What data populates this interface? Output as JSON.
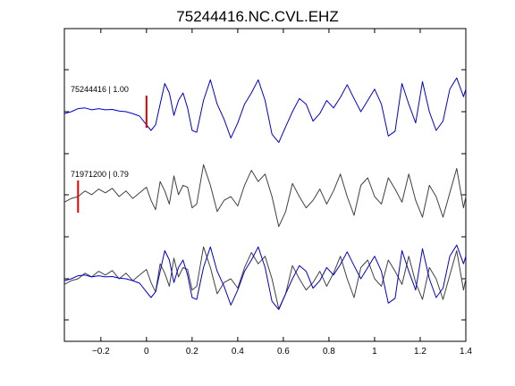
{
  "chart_data": {
    "type": "line",
    "title": "75244416.NC.CVL.EHZ",
    "xlabel": "",
    "ylabel": "",
    "xlim": [
      -0.36,
      1.4
    ],
    "grid": false,
    "x_ticks": [
      -0.2,
      0,
      0.2,
      0.4,
      0.6,
      0.8,
      1,
      1.2,
      1.4
    ],
    "x_tick_labels": [
      "−0.2",
      "0",
      "0.2",
      "0.4",
      "0.6",
      "0.8",
      "1",
      "1.2",
      "1.4"
    ],
    "traces": [
      {
        "label": "75244416 | 1.00",
        "color": "#0000cc",
        "pick_time": 0.0,
        "x": [
          -0.36,
          -0.33,
          -0.3,
          -0.27,
          -0.24,
          -0.21,
          -0.18,
          -0.15,
          -0.12,
          -0.09,
          -0.06,
          -0.03,
          0.0,
          0.02,
          0.04,
          0.06,
          0.08,
          0.1,
          0.12,
          0.14,
          0.16,
          0.18,
          0.2,
          0.22,
          0.25,
          0.28,
          0.31,
          0.34,
          0.37,
          0.4,
          0.43,
          0.46,
          0.49,
          0.52,
          0.55,
          0.58,
          0.61,
          0.64,
          0.67,
          0.7,
          0.73,
          0.76,
          0.79,
          0.82,
          0.85,
          0.88,
          0.91,
          0.94,
          0.97,
          1.0,
          1.03,
          1.06,
          1.09,
          1.12,
          1.15,
          1.18,
          1.21,
          1.24,
          1.27,
          1.3,
          1.33,
          1.36,
          1.39,
          1.4
        ],
        "y": [
          -0.05,
          0.0,
          0.08,
          0.1,
          0.05,
          0.08,
          0.05,
          0.06,
          0.02,
          0.0,
          -0.05,
          -0.12,
          -0.35,
          -0.5,
          -0.35,
          0.2,
          0.75,
          0.5,
          -0.1,
          0.3,
          0.5,
          0.1,
          -0.5,
          -0.55,
          0.3,
          0.85,
          0.2,
          -0.2,
          -0.7,
          -0.3,
          0.2,
          0.5,
          0.85,
          0.3,
          -0.6,
          -0.82,
          -0.4,
          0.0,
          0.35,
          0.2,
          -0.25,
          -0.05,
          0.3,
          0.1,
          0.38,
          0.72,
          0.35,
          0.0,
          0.3,
          0.6,
          0.2,
          -0.65,
          -0.52,
          0.75,
          0.2,
          -0.3,
          0.8,
          0.0,
          -0.5,
          -0.25,
          0.6,
          0.9,
          0.4,
          0.6
        ]
      },
      {
        "label": "71971200 | 0.79",
        "color": "#404040",
        "pick_time": -0.3,
        "x": [
          -0.36,
          -0.33,
          -0.3,
          -0.27,
          -0.24,
          -0.21,
          -0.18,
          -0.15,
          -0.12,
          -0.09,
          -0.06,
          -0.03,
          0.0,
          0.02,
          0.04,
          0.06,
          0.08,
          0.1,
          0.12,
          0.14,
          0.16,
          0.18,
          0.2,
          0.22,
          0.25,
          0.28,
          0.31,
          0.34,
          0.37,
          0.4,
          0.43,
          0.46,
          0.49,
          0.52,
          0.55,
          0.58,
          0.61,
          0.64,
          0.67,
          0.7,
          0.73,
          0.76,
          0.79,
          0.82,
          0.85,
          0.88,
          0.91,
          0.94,
          0.97,
          1.0,
          1.03,
          1.06,
          1.09,
          1.12,
          1.15,
          1.18,
          1.21,
          1.24,
          1.27,
          1.3,
          1.33,
          1.36,
          1.39,
          1.4
        ],
        "y": [
          -0.15,
          -0.05,
          0.0,
          0.15,
          0.05,
          0.2,
          0.1,
          0.22,
          0.0,
          0.15,
          -0.05,
          0.1,
          0.25,
          -0.1,
          -0.35,
          0.4,
          0.15,
          -0.2,
          0.55,
          0.05,
          0.3,
          0.25,
          -0.3,
          -0.2,
          0.85,
          0.3,
          -0.4,
          -0.1,
          0.0,
          -0.25,
          0.3,
          0.7,
          0.4,
          0.6,
          0.0,
          -0.8,
          -0.4,
          0.35,
          0.0,
          -0.3,
          -0.1,
          0.2,
          -0.2,
          0.15,
          0.6,
          0.0,
          -0.5,
          0.3,
          0.5,
          0.0,
          -0.2,
          0.5,
          0.2,
          -0.15,
          0.6,
          -0.1,
          -0.55,
          0.3,
          0.0,
          -0.55,
          0.1,
          0.75,
          -0.3,
          0.0
        ]
      }
    ]
  }
}
